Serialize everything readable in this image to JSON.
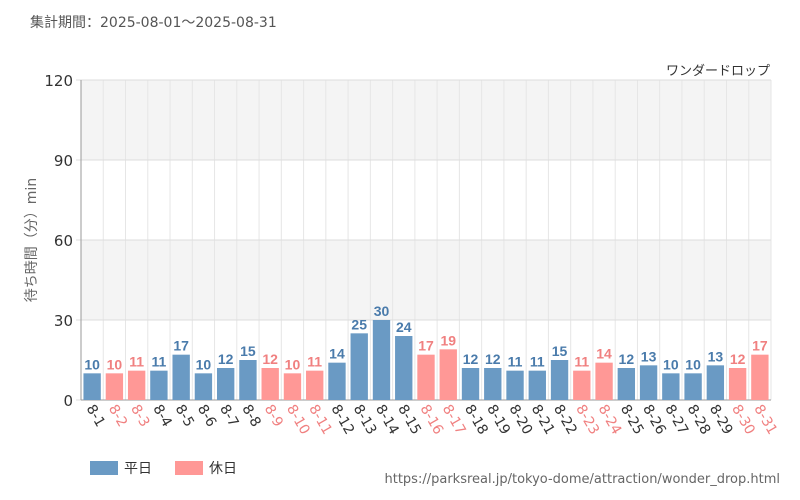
{
  "header": {
    "period_label": "集計期間：2025-08-01～2025-08-31",
    "attraction_name": "ワンダードロップ"
  },
  "legend": {
    "weekday_label": "平日",
    "holiday_label": "休日"
  },
  "footer": {
    "source_url": "https://parksreal.jp/tokyo-dome/attraction/wonder_drop.html"
  },
  "colors": {
    "weekday": "#6a9ac4",
    "holiday": "#ff9896",
    "weekday_text": "#4a7bab",
    "holiday_text": "#f08080"
  },
  "chart_data": {
    "type": "bar",
    "ylabel": "待ち時間（分）min",
    "ylim": [
      0,
      120
    ],
    "yticks": [
      0,
      30,
      60,
      90,
      120
    ],
    "grid": true,
    "categories": [
      "8-1",
      "8-2",
      "8-3",
      "8-4",
      "8-5",
      "8-6",
      "8-7",
      "8-8",
      "8-9",
      "8-10",
      "8-11",
      "8-12",
      "8-13",
      "8-14",
      "8-15",
      "8-16",
      "8-17",
      "8-18",
      "8-19",
      "8-20",
      "8-21",
      "8-22",
      "8-23",
      "8-24",
      "8-25",
      "8-26",
      "8-27",
      "8-28",
      "8-29",
      "8-30",
      "8-31"
    ],
    "values": [
      10,
      10,
      11,
      11,
      17,
      10,
      12,
      15,
      12,
      10,
      11,
      14,
      25,
      30,
      24,
      17,
      19,
      12,
      12,
      11,
      11,
      15,
      11,
      14,
      12,
      13,
      10,
      10,
      13,
      12,
      17
    ],
    "day_type": [
      "weekday",
      "holiday",
      "holiday",
      "weekday",
      "weekday",
      "weekday",
      "weekday",
      "weekday",
      "holiday",
      "holiday",
      "holiday",
      "weekday",
      "weekday",
      "weekday",
      "weekday",
      "holiday",
      "holiday",
      "weekday",
      "weekday",
      "weekday",
      "weekday",
      "weekday",
      "holiday",
      "holiday",
      "weekday",
      "weekday",
      "weekday",
      "weekday",
      "weekday",
      "holiday",
      "holiday"
    ],
    "legend_position": "bottom-left"
  }
}
